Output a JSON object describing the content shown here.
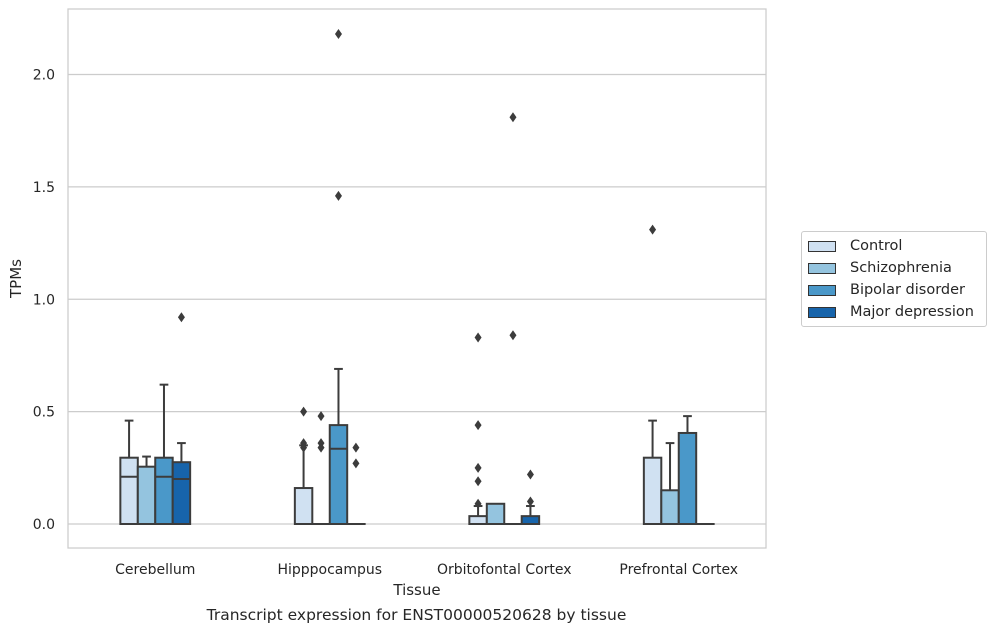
{
  "chart_data": {
    "type": "box",
    "title": "",
    "xlabel": "Tissue",
    "ylabel": "TPMs",
    "caption": "Transcript expression for ENST00000520628 by tissue",
    "ylim": [
      -0.11,
      2.3
    ],
    "yticks": [
      0.0,
      0.5,
      1.0,
      1.5,
      2.0
    ],
    "ytick_labels": [
      "0.0",
      "0.5",
      "1.0",
      "1.5",
      "2.0"
    ],
    "grid": "horizontal",
    "legend_position": "right",
    "categories": [
      "Cerebellum",
      "Hipppocampus",
      "Orbitofontal Cortex",
      "Prefrontal Cortex"
    ],
    "series": [
      {
        "name": "Control",
        "color": "#d0e1f2",
        "boxes": [
          {
            "min": 0,
            "q1": 0,
            "median": 0.21,
            "q3": 0.295,
            "max": 0.46,
            "outliers": []
          },
          {
            "min": 0,
            "q1": 0,
            "median": 0,
            "q3": 0.16,
            "max": 0.35,
            "outliers": [
              0.5,
              0.36,
              0.34
            ]
          },
          {
            "min": 0,
            "q1": 0,
            "median": 0,
            "q3": 0.035,
            "max": 0.08,
            "outliers": [
              0.09,
              0.19,
              0.25,
              0.44,
              0.83
            ]
          },
          {
            "min": 0,
            "q1": 0,
            "median": 0,
            "q3": 0.295,
            "max": 0.46,
            "outliers": [
              1.31
            ]
          }
        ]
      },
      {
        "name": "Schizophrenia",
        "color": "#94c4df",
        "boxes": [
          {
            "min": 0,
            "q1": 0,
            "median": 0.255,
            "q3": 0.255,
            "max": 0.3,
            "outliers": []
          },
          {
            "min": 0,
            "q1": 0,
            "median": 0,
            "q3": 0,
            "max": 0,
            "outliers": [
              0.48,
              0.36,
              0.34
            ]
          },
          {
            "min": 0,
            "q1": 0,
            "median": 0,
            "q3": 0.09,
            "max": 0.09,
            "outliers": []
          },
          {
            "min": 0,
            "q1": 0,
            "median": 0.15,
            "q3": 0.15,
            "max": 0.36,
            "outliers": []
          }
        ]
      },
      {
        "name": "Bipolar disorder",
        "color": "#4a98c9",
        "boxes": [
          {
            "min": 0,
            "q1": 0,
            "median": 0.21,
            "q3": 0.295,
            "max": 0.62,
            "outliers": []
          },
          {
            "min": 0,
            "q1": 0,
            "median": 0.335,
            "q3": 0.44,
            "max": 0.69,
            "outliers": [
              1.46,
              2.18
            ]
          },
          {
            "min": 0,
            "q1": 0,
            "median": 0,
            "q3": 0,
            "max": 0,
            "outliers": [
              0.84,
              1.81
            ]
          },
          {
            "min": 0,
            "q1": 0,
            "median": 0.405,
            "q3": 0.405,
            "max": 0.48,
            "outliers": []
          }
        ]
      },
      {
        "name": "Major depression",
        "color": "#1764ab",
        "boxes": [
          {
            "min": 0,
            "q1": 0,
            "median": 0.2,
            "q3": 0.275,
            "max": 0.36,
            "outliers": [
              0.92
            ]
          },
          {
            "min": 0,
            "q1": 0,
            "median": 0,
            "q3": 0,
            "max": 0,
            "outliers": [
              0.34,
              0.27
            ]
          },
          {
            "min": 0,
            "q1": 0,
            "median": 0,
            "q3": 0.035,
            "max": 0.08,
            "outliers": [
              0.1,
              0.22
            ]
          },
          {
            "min": 0,
            "q1": 0,
            "median": 0,
            "q3": 0,
            "max": 0,
            "outliers": []
          }
        ]
      }
    ]
  }
}
